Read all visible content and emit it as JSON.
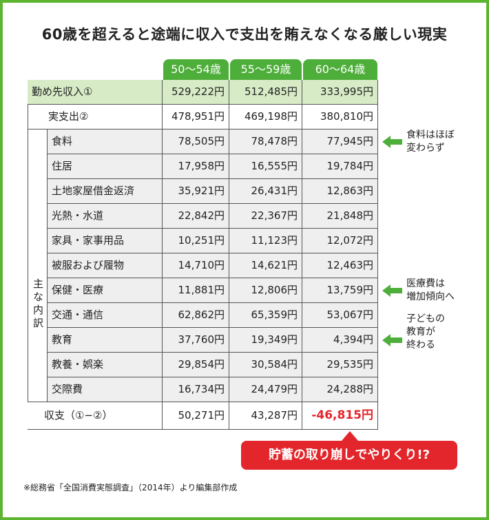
{
  "title": "60歳を超えると途端に収入で支出を賄えなくなる厳しい現実",
  "columns": [
    "50～54歳",
    "55～59歳",
    "60～64歳"
  ],
  "income": {
    "label": "勤め先収入①",
    "values": [
      "529,222円",
      "512,485円",
      "333,995円"
    ]
  },
  "expenditure": {
    "label": "実支出②",
    "values": [
      "478,951円",
      "469,198円",
      "380,810円"
    ]
  },
  "breakdown_label": "主な内訳",
  "breakdown": [
    {
      "label": "食料",
      "values": [
        "78,505円",
        "78,478円",
        "77,945円"
      ],
      "note": [
        "食料はほぼ",
        "変わらず"
      ]
    },
    {
      "label": "住居",
      "values": [
        "17,958円",
        "16,555円",
        "19,784円"
      ]
    },
    {
      "label": "土地家屋借金返済",
      "values": [
        "35,921円",
        "26,431円",
        "12,863円"
      ]
    },
    {
      "label": "光熱・水道",
      "values": [
        "22,842円",
        "22,367円",
        "21,848円"
      ]
    },
    {
      "label": "家具・家事用品",
      "values": [
        "10,251円",
        "11,123円",
        "12,072円"
      ]
    },
    {
      "label": "被服および履物",
      "values": [
        "14,710円",
        "14,621円",
        "12,463円"
      ]
    },
    {
      "label": "保健・医療",
      "values": [
        "11,881円",
        "12,806円",
        "13,759円"
      ],
      "note": [
        "医療費は",
        "増加傾向へ"
      ]
    },
    {
      "label": "交通・通信",
      "values": [
        "62,862円",
        "65,359円",
        "53,067円"
      ]
    },
    {
      "label": "教育",
      "values": [
        "37,760円",
        "19,349円",
        "4,394円"
      ],
      "note": [
        "子どもの",
        "教育が",
        "終わる"
      ]
    },
    {
      "label": "教養・娯楽",
      "values": [
        "29,854円",
        "30,584円",
        "29,535円"
      ]
    },
    {
      "label": "交際費",
      "values": [
        "16,734円",
        "24,479円",
        "24,288円"
      ]
    }
  ],
  "balance": {
    "label": "収支（①−②）",
    "values": [
      "50,271円",
      "43,287円",
      "-46,815円"
    ]
  },
  "callout": "貯蓄の取り崩しでやりくり!?",
  "source": "※総務省「全国消費実態調査」（2014年）より編集部作成"
}
